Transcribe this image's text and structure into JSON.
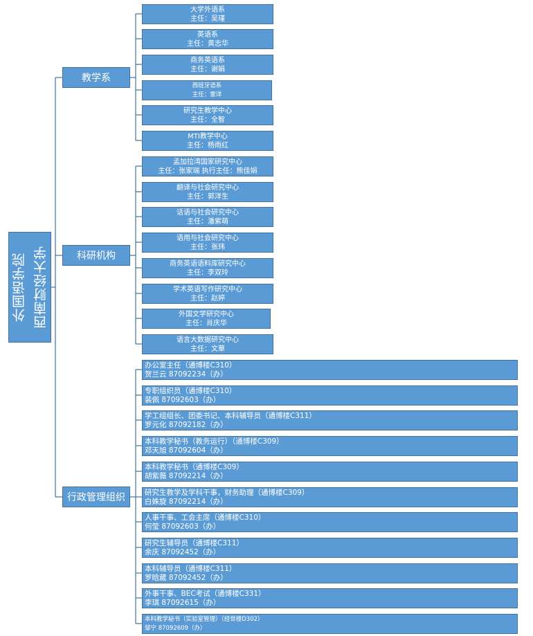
{
  "root": {
    "line1": "西南财经大学",
    "line2": "外国语学院"
  },
  "teaching": {
    "label": "教学系",
    "items": [
      {
        "name": "大学外语系",
        "head": "主任：吴瑾"
      },
      {
        "name": "英语系",
        "head": "主任：黄志华"
      },
      {
        "name": "商务英语系",
        "head": "主任：谢娟"
      },
      {
        "name": "西班牙语系",
        "head": "主任：雷洋"
      },
      {
        "name": "研究生教学中心",
        "head": "主任：全智"
      },
      {
        "name": "MTI教学中心",
        "head": "主任：杨雨红"
      }
    ]
  },
  "research": {
    "label": "科研机构",
    "items": [
      {
        "name": "孟加拉湾国家研究中心",
        "head": "主任：张家瑞    执行主任：熊佳娟"
      },
      {
        "name": "翻译与社会研究中心",
        "head": "主任：郭洋生"
      },
      {
        "name": "话语与社会研究中心",
        "head": "主任：潘紫萌"
      },
      {
        "name": "语用与社会研究中心",
        "head": "主任：张玮"
      },
      {
        "name": "商务英语语料库研究中心",
        "head": "主任：李双玲"
      },
      {
        "name": "学术英语写作研究中心",
        "head": "主任：赵婷"
      },
      {
        "name": "外国文学研究中心",
        "head": "主任：肖庆华"
      },
      {
        "name": "语言大数据研究中心",
        "head": "主任：文華"
      }
    ]
  },
  "admin": {
    "label": "行政管理组织",
    "items": [
      {
        "role": "办公室主任（通博楼C310）",
        "contact": "贺兰云  87092234（办）"
      },
      {
        "role": "专职组织员（通博楼C310）",
        "contact": "裴佩    87092603（办）"
      },
      {
        "role": "学工组组长、团委书记、本科辅导员（通博楼C311）",
        "contact": "罗元化  87092182（办）"
      },
      {
        "role": "本科教学秘书（教务运行）（通博楼C309）",
        "contact": "邓天旭  87092604（办）"
      },
      {
        "role": "本科教学秘书（通博楼C309）",
        "contact": "胡紫薇  87092214（办）"
      },
      {
        "role": "研究生教学及学科干事，财务助理（通博楼C309）",
        "contact": "白姝旋  87092214（办）"
      },
      {
        "role": "人事干事、工会主席（通博楼C310）",
        "contact": "何莹    87092603（办）"
      },
      {
        "role": "研究生辅导员（通博楼C311）",
        "contact": "余庆    87092452（办）"
      },
      {
        "role": "本科辅导员（通博楼C311）",
        "contact": "罗晗葳  87092452（办）"
      },
      {
        "role": "外事干事、BEC考试（通博楼C331）",
        "contact": "李琪    87092615（办）"
      },
      {
        "role": "本科教学秘书（实验室管理）（经世楼D302）",
        "contact": "邹宁    87092609（办）"
      }
    ]
  },
  "colors": {
    "box_fill": "#5b9bd5",
    "box_border": "#41719c",
    "line": "#41719c",
    "text": "#ffffff"
  }
}
